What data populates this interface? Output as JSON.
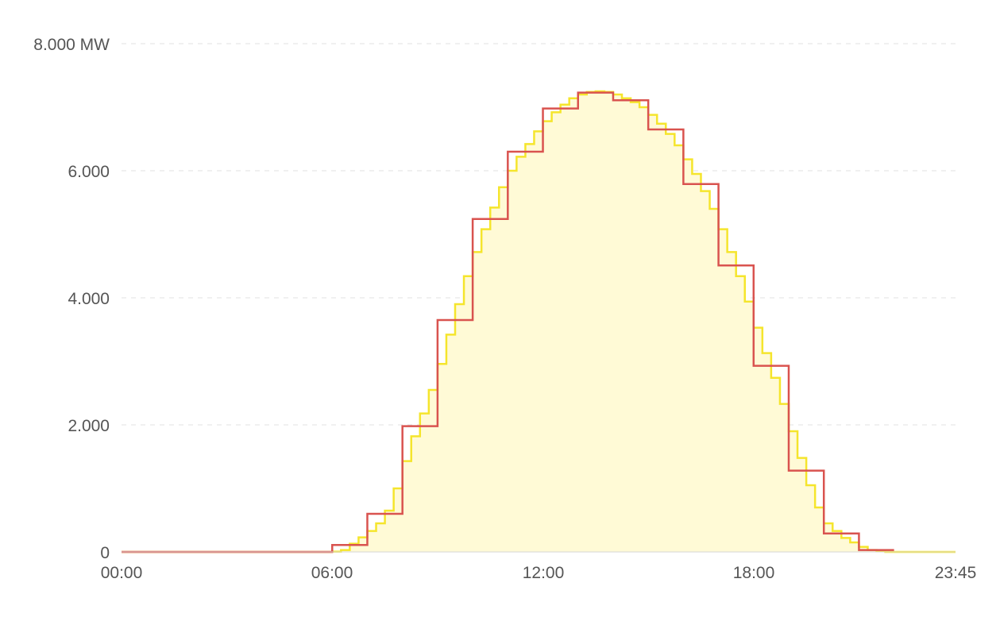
{
  "chart_data": {
    "type": "area",
    "step": true,
    "x_unit": "time of day (15-min / 1-h intervals)",
    "y_unit": "MW",
    "ylim": [
      0,
      8000
    ],
    "x_ticks": [
      "00:00",
      "06:00",
      "12:00",
      "18:00",
      "23:45"
    ],
    "y_ticks": [
      "0",
      "2.000",
      "4.000",
      "6.000",
      "8.000 MW"
    ],
    "grid": true,
    "colors": {
      "quarter_hour_line": "#f5e52c",
      "quarter_hour_fill": "#fffad6",
      "hourly_line": "#d9534f"
    },
    "series": [
      {
        "interval": "15min",
        "start": "00:00",
        "values": [
          0,
          0,
          0,
          0,
          0,
          0,
          0,
          0,
          0,
          0,
          0,
          0,
          0,
          0,
          0,
          0,
          0,
          0,
          0,
          0,
          0,
          0,
          0,
          0,
          5,
          30,
          130,
          230,
          330,
          450,
          650,
          1000,
          1430,
          1820,
          2180,
          2550,
          2960,
          3420,
          3900,
          4340,
          4720,
          5080,
          5420,
          5740,
          6000,
          6220,
          6420,
          6620,
          6780,
          6920,
          7040,
          7140,
          7200,
          7240,
          7250,
          7240,
          7200,
          7140,
          7080,
          7000,
          6880,
          6740,
          6580,
          6400,
          6180,
          5950,
          5680,
          5400,
          5080,
          4720,
          4340,
          3940,
          3530,
          3130,
          2740,
          2330,
          1900,
          1480,
          1050,
          700,
          450,
          330,
          220,
          150,
          80,
          30,
          10,
          0,
          0,
          0,
          0,
          0,
          0,
          0,
          0,
          0
        ]
      },
      {
        "interval": "1h",
        "start": "00:00",
        "values": [
          0,
          0,
          0,
          0,
          0,
          0,
          110,
          600,
          1980,
          3650,
          5240,
          6300,
          6980,
          7230,
          7110,
          6650,
          5790,
          4510,
          2930,
          1280,
          290,
          30,
          0,
          0
        ]
      }
    ]
  }
}
